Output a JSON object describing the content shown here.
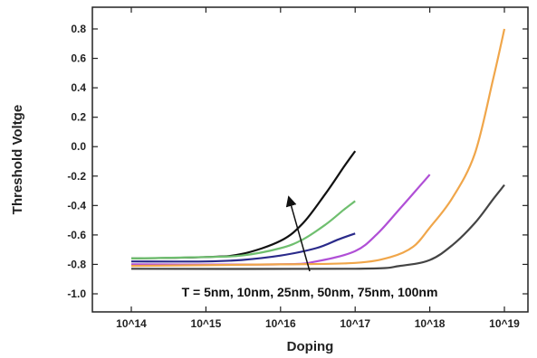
{
  "chart_data": {
    "type": "line",
    "title": "",
    "xlabel": "Doping",
    "ylabel": "Threshold Voltge",
    "x_scale": "log",
    "xlim": [
      100000000000000.0,
      1e+19
    ],
    "ylim": [
      -1.1,
      0.9
    ],
    "x_ticks": [
      100000000000000.0,
      1000000000000000.0,
      1e+16,
      1e+17,
      1e+18,
      1e+19
    ],
    "x_tick_labels": [
      "10^14",
      "10^15",
      "10^16",
      "10^17",
      "10^18",
      "10^19"
    ],
    "y_ticks": [
      0.8,
      0.6,
      0.4,
      0.2,
      0.0,
      -0.2,
      -0.4,
      -0.6,
      -0.8,
      -1.0
    ],
    "y_tick_labels": [
      "0.8",
      "0.6",
      "0.4",
      "0.2",
      "0.0",
      "-0.2",
      "-0.4",
      "-0.6",
      "-0.8",
      "-1.0"
    ],
    "grid": false,
    "annotation": "T = 5nm, 10nm, 25nm, 50nm, 75nm, 100nm",
    "series": [
      {
        "color": "#111111",
        "points": [
          [
            100000000000000.0,
            -0.76
          ],
          [
            1000000000000000.0,
            -0.75
          ],
          [
            3000000000000000.0,
            -0.73
          ],
          [
            1e+16,
            -0.64
          ],
          [
            2e+16,
            -0.52
          ],
          [
            4e+16,
            -0.32
          ],
          [
            7e+16,
            -0.14
          ],
          [
            1e+17,
            -0.03
          ]
        ]
      },
      {
        "color": "#6fbf6f",
        "points": [
          [
            100000000000000.0,
            -0.76
          ],
          [
            1000000000000000.0,
            -0.75
          ],
          [
            3000000000000000.0,
            -0.74
          ],
          [
            1e+16,
            -0.69
          ],
          [
            2e+16,
            -0.63
          ],
          [
            4e+16,
            -0.53
          ],
          [
            7e+16,
            -0.43
          ],
          [
            1e+17,
            -0.37
          ]
        ]
      },
      {
        "color": "#2a2a8a",
        "points": [
          [
            100000000000000.0,
            -0.78
          ],
          [
            1000000000000000.0,
            -0.78
          ],
          [
            3000000000000000.0,
            -0.77
          ],
          [
            1e+16,
            -0.74
          ],
          [
            3e+16,
            -0.69
          ],
          [
            6e+16,
            -0.63
          ],
          [
            1e+17,
            -0.59
          ]
        ]
      },
      {
        "color": "#b04fd6",
        "points": [
          [
            100000000000000.0,
            -0.8
          ],
          [
            1e+16,
            -0.8
          ],
          [
            3e+16,
            -0.78
          ],
          [
            1e+17,
            -0.71
          ],
          [
            2e+17,
            -0.59
          ],
          [
            4e+17,
            -0.42
          ],
          [
            7e+17,
            -0.28
          ],
          [
            1e+18,
            -0.19
          ]
        ]
      },
      {
        "color": "#f0a64a",
        "points": [
          [
            100000000000000.0,
            -0.81
          ],
          [
            1e+16,
            -0.8
          ],
          [
            1e+17,
            -0.79
          ],
          [
            3e+17,
            -0.75
          ],
          [
            6e+17,
            -0.68
          ],
          [
            1e+18,
            -0.55
          ],
          [
            2e+18,
            -0.35
          ],
          [
            4e+18,
            -0.05
          ],
          [
            7e+18,
            0.45
          ],
          [
            1e+19,
            0.8
          ]
        ]
      },
      {
        "color": "#444444",
        "points": [
          [
            100000000000000.0,
            -0.83
          ],
          [
            1e+17,
            -0.83
          ],
          [
            4e+17,
            -0.81
          ],
          [
            1e+18,
            -0.77
          ],
          [
            2e+18,
            -0.67
          ],
          [
            4e+18,
            -0.52
          ],
          [
            7e+18,
            -0.36
          ],
          [
            1e+19,
            -0.26
          ]
        ]
      }
    ]
  }
}
